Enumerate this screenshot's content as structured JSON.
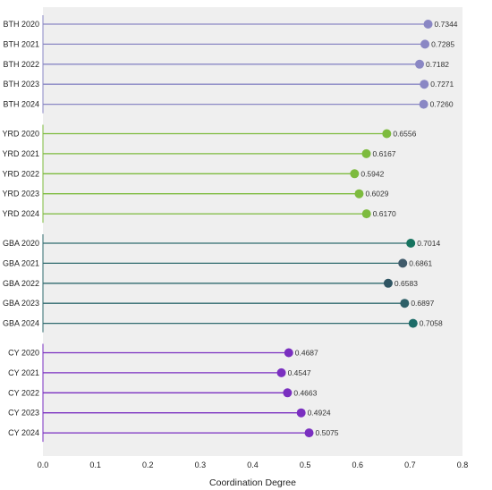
{
  "chart_data": {
    "type": "lollipop",
    "orientation": "horizontal",
    "xlabel": "Coordination Degree",
    "xlim": [
      0.0,
      0.8
    ],
    "xticks": [
      "0.0",
      "0.1",
      "0.2",
      "0.3",
      "0.4",
      "0.5",
      "0.6",
      "0.7",
      "0.8"
    ],
    "plot_background": "#efefef",
    "groups": [
      {
        "name": "BTH",
        "color": "#8a87c4",
        "items": [
          {
            "label": "BTH 2020",
            "value": 0.7344,
            "value_label": "0.7344"
          },
          {
            "label": "BTH 2021",
            "value": 0.7285,
            "value_label": "0.7285"
          },
          {
            "label": "BTH 2022",
            "value": 0.7182,
            "value_label": "0.7182"
          },
          {
            "label": "BTH 2023",
            "value": 0.7271,
            "value_label": "0.7271"
          },
          {
            "label": "BTH 2024",
            "value": 0.726,
            "value_label": "0.7260"
          }
        ]
      },
      {
        "name": "YRD",
        "color": "#7dbb3e",
        "items": [
          {
            "label": "YRD 2020",
            "value": 0.6556,
            "value_label": "0.6556"
          },
          {
            "label": "YRD 2021",
            "value": 0.6167,
            "value_label": "0.6167"
          },
          {
            "label": "YRD 2022",
            "value": 0.5942,
            "value_label": "0.5942"
          },
          {
            "label": "YRD 2023",
            "value": 0.6029,
            "value_label": "0.6029"
          },
          {
            "label": "YRD 2024",
            "value": 0.617,
            "value_label": "0.6170"
          }
        ]
      },
      {
        "name": "GBA",
        "color": "#2f6a6e",
        "marker_colors": [
          "#16735f",
          "#3f5a6a",
          "#2f5563",
          "#2e6068",
          "#1c6c68"
        ],
        "items": [
          {
            "label": "GBA 2020",
            "value": 0.7014,
            "value_label": "0.7014"
          },
          {
            "label": "GBA 2021",
            "value": 0.6861,
            "value_label": "0.6861"
          },
          {
            "label": "GBA 2022",
            "value": 0.6583,
            "value_label": "0.6583"
          },
          {
            "label": "GBA 2023",
            "value": 0.6897,
            "value_label": "0.6897"
          },
          {
            "label": "GBA 2024",
            "value": 0.7058,
            "value_label": "0.7058"
          }
        ]
      },
      {
        "name": "CY",
        "color": "#7a2fc0",
        "items": [
          {
            "label": "CY 2020",
            "value": 0.4687,
            "value_label": "0.4687"
          },
          {
            "label": "CY 2021",
            "value": 0.4547,
            "value_label": "0.4547"
          },
          {
            "label": "CY 2022",
            "value": 0.4663,
            "value_label": "0.4663"
          },
          {
            "label": "CY 2023",
            "value": 0.4924,
            "value_label": "0.4924"
          },
          {
            "label": "CY 2024",
            "value": 0.5075,
            "value_label": "0.5075"
          }
        ]
      }
    ]
  }
}
